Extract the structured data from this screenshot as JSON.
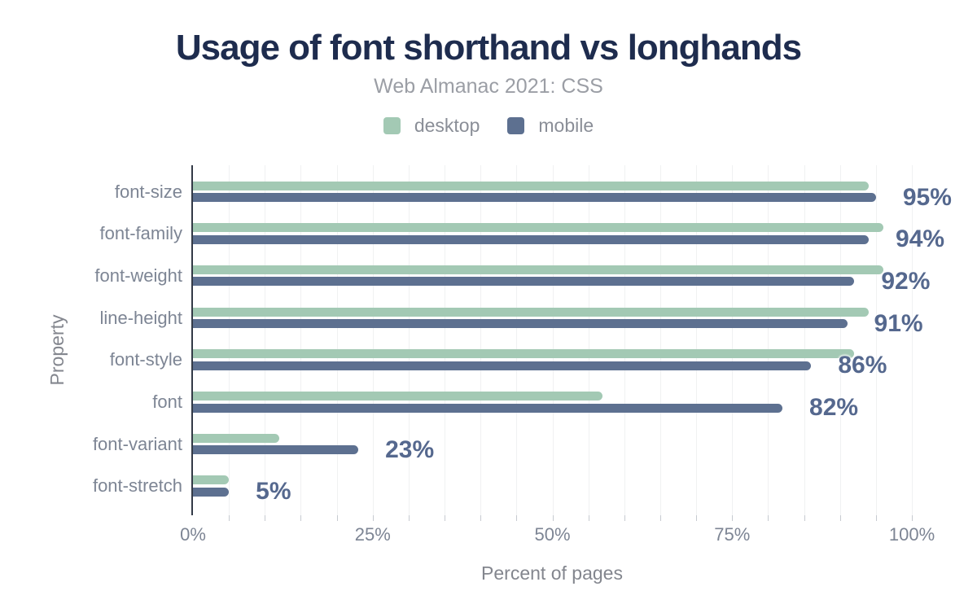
{
  "header": {
    "title": "Usage of font shorthand vs longhands",
    "subtitle": "Web Almanac 2021: CSS"
  },
  "axis_titles": {
    "x": "Percent of pages",
    "y": "Property"
  },
  "colors": {
    "title": "#1e2c4e",
    "subtitle": "#9b9ea5",
    "desktop": "#a3c9b4",
    "mobile": "#5d7090",
    "value_label": "#55688e",
    "axis_text": "#7d8594",
    "axis_line": "#333a47",
    "gridline": "#f0f1f2",
    "tick": "#c6cad0"
  },
  "chart_data": {
    "type": "bar",
    "orientation": "horizontal",
    "title": "Usage of font shorthand vs longhands",
    "subtitle": "Web Almanac 2021: CSS",
    "xlabel": "Percent of pages",
    "ylabel": "Property",
    "xlim": [
      0,
      100
    ],
    "grid": "minor vertical gridlines every 5%",
    "legend_position": "top",
    "categories": [
      "font-size",
      "font-family",
      "font-weight",
      "line-height",
      "font-style",
      "font",
      "font-variant",
      "font-stretch"
    ],
    "series": [
      {
        "name": "desktop",
        "color": "#a3c9b4",
        "values": [
          94,
          96,
          96,
          94,
          92,
          57,
          12,
          5
        ]
      },
      {
        "name": "mobile",
        "color": "#5d7090",
        "values": [
          95,
          94,
          92,
          91,
          86,
          82,
          23,
          5
        ]
      }
    ],
    "bar_value_labels": {
      "labeled_series": "mobile",
      "values": [
        "95%",
        "94%",
        "92%",
        "91%",
        "86%",
        "82%",
        "23%",
        "5%"
      ]
    },
    "xticks": [
      {
        "value": 0,
        "label": "0%"
      },
      {
        "value": 25,
        "label": "25%"
      },
      {
        "value": 50,
        "label": "50%"
      },
      {
        "value": 75,
        "label": "75%"
      },
      {
        "value": 100,
        "label": "100%"
      }
    ]
  }
}
